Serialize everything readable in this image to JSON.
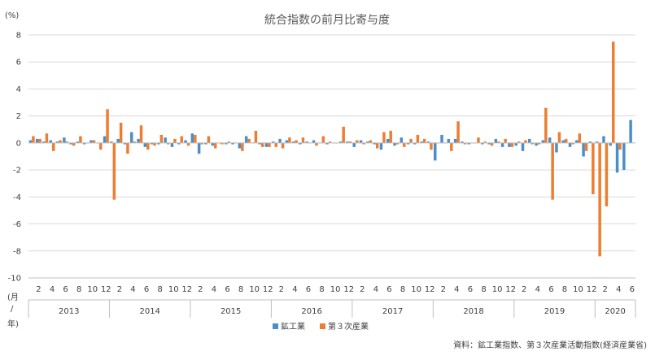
{
  "chart_data": {
    "type": "bar",
    "title": "統合指数の前月比寄与度",
    "ylabel": "(%)",
    "ylim": [
      -10,
      8
    ],
    "yticks": [
      8,
      6,
      4,
      2,
      0,
      -2,
      -4,
      -6,
      -8,
      -10
    ],
    "grid": true,
    "legend_position": "bottom",
    "axis_row_label_month": "(月",
    "axis_row_label_sep": "/",
    "axis_row_label_year": "年)",
    "month_tick_labels": [
      "2",
      "4",
      "6",
      "8",
      "10",
      "12"
    ],
    "month_tick_labels_2020": [
      "2",
      "4",
      "6"
    ],
    "years": [
      "2013",
      "2014",
      "2015",
      "2016",
      "2017",
      "2018",
      "2019",
      "2020"
    ],
    "series": [
      {
        "name": "鉱工業",
        "color": "#4a8fc9",
        "values": [
          0.2,
          0.3,
          0.1,
          0.2,
          0.1,
          0.4,
          -0.1,
          0.1,
          -0.1,
          0.2,
          0.0,
          0.5,
          0.1,
          0.3,
          -0.1,
          0.8,
          0.3,
          -0.3,
          -0.1,
          -0.1,
          0.4,
          -0.3,
          -0.1,
          0.2,
          0.7,
          -0.8,
          -0.1,
          -0.2,
          0.0,
          -0.1,
          -0.1,
          -0.4,
          0.5,
          0.0,
          -0.1,
          -0.3,
          0.1,
          0.3,
          0.2,
          0.1,
          -0.1,
          0.1,
          0.2,
          0.0,
          -0.1,
          0.0,
          0.1,
          0.1,
          -0.3,
          0.2,
          0.1,
          -0.1,
          -0.5,
          0.3,
          -0.2,
          0.4,
          -0.1,
          -0.1,
          0.1,
          0.1,
          -1.3,
          0.6,
          0.3,
          0.3,
          0.1,
          -0.1,
          0.0,
          -0.1,
          -0.1,
          0.3,
          -0.3,
          -0.3,
          -0.2,
          -0.6,
          0.3,
          -0.2,
          0.2,
          0.4,
          -0.7,
          0.2,
          -0.3,
          0.2,
          -1.0,
          0.1,
          0.1,
          0.5,
          -0.2,
          -2.2,
          -2.0,
          1.7
        ]
      },
      {
        "name": "第３次産業",
        "color": "#ed7d31",
        "values": [
          0.5,
          0.3,
          0.7,
          -0.6,
          0.2,
          0.1,
          -0.2,
          0.5,
          0.0,
          0.2,
          -0.5,
          2.5,
          -4.2,
          1.5,
          -0.8,
          0.1,
          1.3,
          -0.5,
          -0.2,
          0.6,
          -0.1,
          0.3,
          0.5,
          -0.2,
          0.6,
          -0.1,
          0.5,
          -0.4,
          -0.1,
          0.1,
          0.0,
          -0.6,
          0.3,
          0.9,
          -0.3,
          -0.3,
          -0.3,
          -0.4,
          0.4,
          0.2,
          0.4,
          0.0,
          -0.2,
          0.5,
          0.1,
          0.0,
          1.2,
          0.1,
          0.2,
          -0.1,
          0.2,
          -0.4,
          0.8,
          0.9,
          -0.1,
          -0.3,
          0.3,
          0.6,
          0.3,
          -0.5,
          0.0,
          0.0,
          -0.6,
          1.6,
          -0.1,
          0.0,
          0.4,
          0.1,
          -0.2,
          0.1,
          0.3,
          -0.3,
          0.1,
          0.2,
          -0.1,
          -0.1,
          2.6,
          -4.2,
          0.8,
          0.3,
          -0.1,
          0.7,
          -0.6,
          -3.8,
          -8.4,
          -4.7,
          7.5,
          -0.5
        ]
      }
    ],
    "source_note": "資料：鉱工業指数、第３次産業活動指数(経済産業省)"
  }
}
